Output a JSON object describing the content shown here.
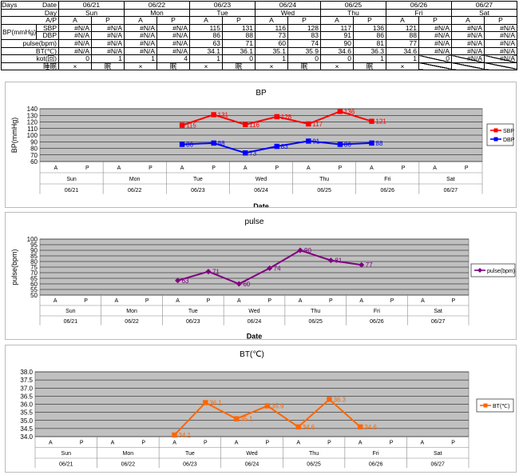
{
  "table": {
    "days_label": "Days",
    "date_label": "Date",
    "day_label": "Day",
    "ap_label": "A/P",
    "bp_label": "BP(mmHg)",
    "dates": [
      "06/21",
      "06/22",
      "06/23",
      "06/24",
      "06/25",
      "06/26",
      "06/27"
    ],
    "days": [
      "Sun",
      "Mon",
      "Tue",
      "Wed",
      "Thu",
      "Fri",
      "Sat"
    ],
    "ap": [
      "A",
      "P"
    ],
    "rows": [
      {
        "label": "SBP",
        "values": [
          "#N/A",
          "#N/A",
          "#N/A",
          "#N/A",
          "115",
          "131",
          "116",
          "128",
          "117",
          "136",
          "121",
          "#N/A",
          "#N/A",
          "#N/A"
        ]
      },
      {
        "label": "DBP",
        "values": [
          "#N/A",
          "#N/A",
          "#N/A",
          "#N/A",
          "86",
          "88",
          "73",
          "83",
          "91",
          "86",
          "88",
          "#N/A",
          "#N/A",
          "#N/A"
        ]
      },
      {
        "label": "pulse(bpm)",
        "values": [
          "#N/A",
          "#N/A",
          "#N/A",
          "#N/A",
          "63",
          "71",
          "60",
          "74",
          "90",
          "81",
          "77",
          "#N/A",
          "#N/A",
          "#N/A"
        ]
      },
      {
        "label": "BT(℃)",
        "values": [
          "#N/A",
          "#N/A",
          "#N/A",
          "#N/A",
          "34.1",
          "36.1",
          "35.1",
          "35.9",
          "34.6",
          "36.3",
          "34.6",
          "#N/A",
          "#N/A",
          "#N/A"
        ]
      },
      {
        "label": "kot(回)",
        "values": [
          "0",
          "1",
          "1",
          "4",
          "1",
          "0",
          "1",
          "0",
          "0",
          "1",
          "1",
          "0",
          "#N/A",
          "#N/A"
        ]
      },
      {
        "label": "睡眠",
        "values": [
          "×",
          "眠",
          "×",
          "眠",
          "×",
          "眠",
          "×",
          "眠",
          "×",
          "眠",
          "×",
          "",
          "",
          ""
        ]
      }
    ]
  },
  "chart_data": [
    {
      "type": "line",
      "title": "BP",
      "xlabel": "Date",
      "ylabel": "BP(mmHg)",
      "ylim": [
        60,
        140
      ],
      "yticks": [
        60,
        70,
        80,
        90,
        100,
        110,
        120,
        130,
        140
      ],
      "grid": true,
      "legend_position": "right",
      "x_sub": [
        "A",
        "P",
        "A",
        "P",
        "A",
        "P",
        "A",
        "P",
        "A",
        "P",
        "A",
        "P",
        "A",
        "P"
      ],
      "x_days": [
        "Sun",
        "Mon",
        "Tue",
        "Wed",
        "Thu",
        "Fri",
        "Sat"
      ],
      "x_dates": [
        "06/21",
        "06/22",
        "06/23",
        "06/24",
        "06/25",
        "06/26",
        "06/27"
      ],
      "series": [
        {
          "name": "SBP",
          "color": "#ff0000",
          "marker": "square",
          "values": [
            null,
            null,
            null,
            null,
            115,
            131,
            116,
            128,
            117,
            136,
            121,
            null,
            null,
            null
          ]
        },
        {
          "name": "DBP",
          "color": "#0000ff",
          "marker": "square",
          "values": [
            null,
            null,
            null,
            null,
            86,
            88,
            73,
            83,
            91,
            86,
            88,
            null,
            null,
            null
          ]
        }
      ]
    },
    {
      "type": "line",
      "title": "pulse",
      "xlabel": "Date",
      "ylabel": "pulse(bpm)",
      "ylim": [
        50,
        100
      ],
      "yticks": [
        50,
        55,
        60,
        65,
        70,
        75,
        80,
        85,
        90,
        95,
        100
      ],
      "grid": true,
      "legend_position": "right",
      "x_sub": [
        "A",
        "P",
        "A",
        "P",
        "A",
        "P",
        "A",
        "P",
        "A",
        "P",
        "A",
        "P",
        "A",
        "P"
      ],
      "x_days": [
        "Sun",
        "Mon",
        "Tue",
        "Wed",
        "Thu",
        "Fri",
        "Sat"
      ],
      "x_dates": [
        "06/21",
        "06/22",
        "06/23",
        "06/24",
        "06/25",
        "06/26",
        "06/27"
      ],
      "series": [
        {
          "name": "pulse(bpm)",
          "color": "#800080",
          "marker": "diamond",
          "values": [
            null,
            null,
            null,
            null,
            63,
            71,
            60,
            74,
            90,
            81,
            77,
            null,
            null,
            null
          ]
        }
      ]
    },
    {
      "type": "line",
      "title": "BT(℃)",
      "xlabel": "",
      "ylabel": "",
      "ylim": [
        34.0,
        38.0
      ],
      "yticks": [
        "34.0",
        "34.5",
        "35.0",
        "35.5",
        "36.0",
        "36.5",
        "37.0",
        "37.5",
        "38.0"
      ],
      "grid": true,
      "legend_position": "right",
      "x_sub": [
        "A",
        "P",
        "A",
        "P",
        "A",
        "P",
        "A",
        "P",
        "A",
        "P",
        "A",
        "P",
        "A",
        "P"
      ],
      "x_days": [
        "Sun",
        "Mon",
        "Tue",
        "Wed",
        "Thu",
        "Fri",
        "Sat"
      ],
      "x_dates": [
        "06/21",
        "06/22",
        "06/23",
        "06/24",
        "06/25",
        "06/26",
        "06/27"
      ],
      "series": [
        {
          "name": "BT(℃)",
          "color": "#ff6600",
          "marker": "square",
          "values": [
            null,
            null,
            null,
            null,
            34.1,
            36.1,
            35.1,
            35.9,
            34.6,
            36.3,
            34.6,
            null,
            null,
            null
          ]
        }
      ]
    }
  ]
}
